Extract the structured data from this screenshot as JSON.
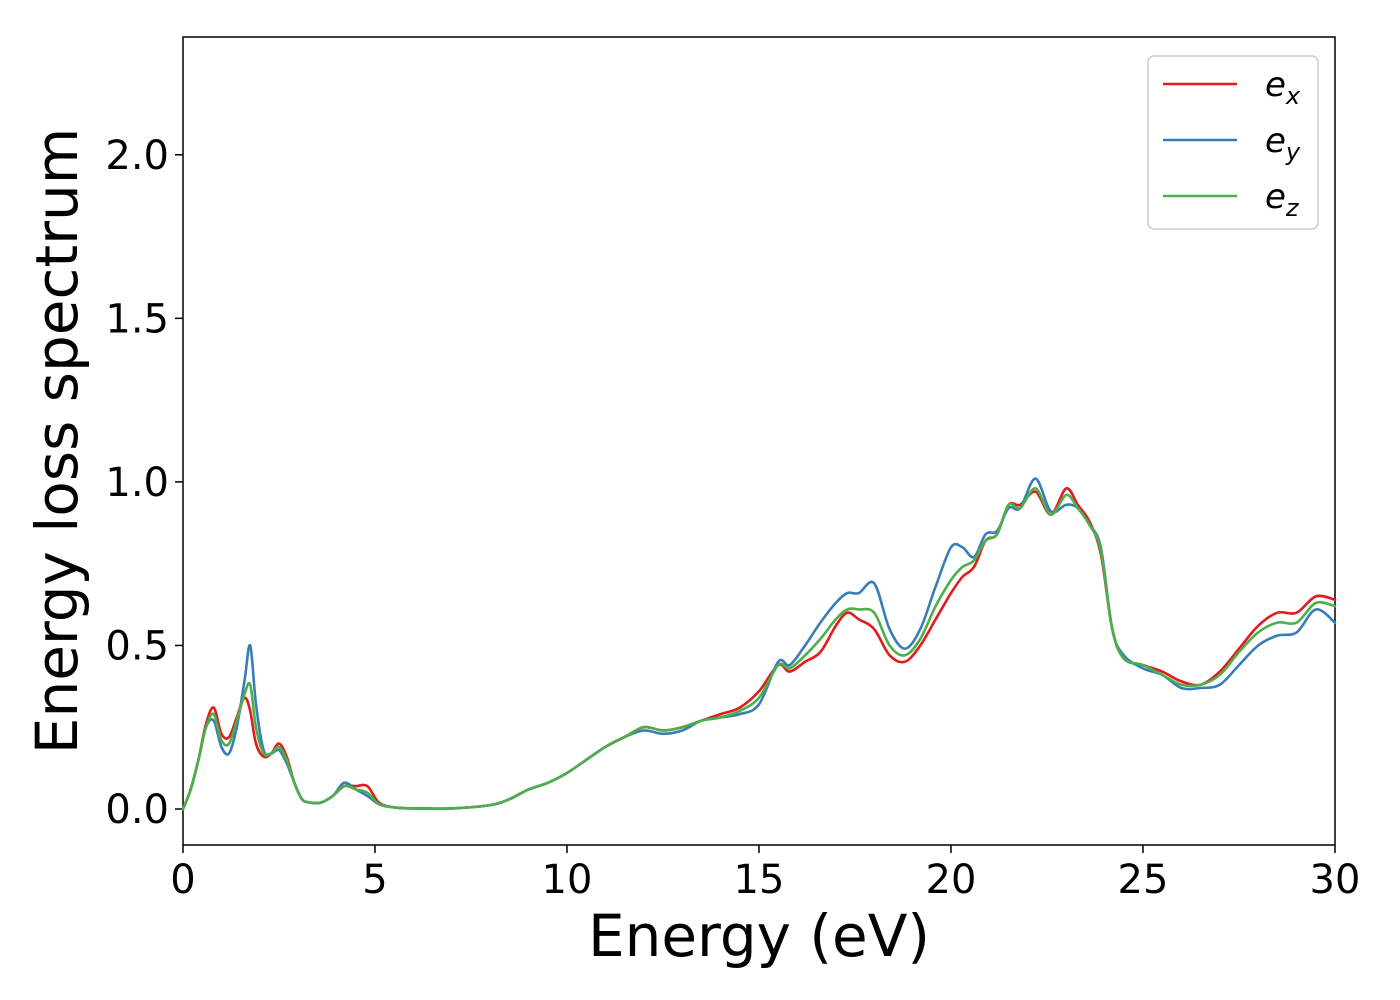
{
  "chart_data": {
    "type": "line",
    "xlabel": "Energy (eV)",
    "ylabel": "Energy loss spectrum",
    "xlim": [
      0,
      30
    ],
    "ylim": [
      -0.11,
      2.36
    ],
    "xticks": [
      0,
      5,
      10,
      15,
      20,
      25,
      30
    ],
    "xtick_labels": [
      "0",
      "5",
      "10",
      "15",
      "20",
      "25",
      "30"
    ],
    "yticks": [
      0.0,
      0.5,
      1.0,
      1.5,
      2.0
    ],
    "ytick_labels": [
      "0.0",
      "0.5",
      "1.0",
      "1.5",
      "2.0"
    ],
    "grid": false,
    "legend_position": "top-right",
    "x": [
      0,
      0.2,
      0.4,
      0.6,
      0.8,
      1.0,
      1.2,
      1.4,
      1.6,
      1.75,
      1.9,
      2.1,
      2.3,
      2.5,
      2.7,
      2.9,
      3.1,
      3.3,
      3.6,
      3.9,
      4.2,
      4.5,
      4.8,
      5.1,
      5.5,
      6,
      7,
      8,
      8.5,
      9,
      9.5,
      10,
      10.5,
      11,
      11.5,
      12,
      12.5,
      13,
      13.5,
      14,
      14.5,
      15,
      15.5,
      15.8,
      16.2,
      16.6,
      17,
      17.3,
      17.6,
      18,
      18.4,
      18.8,
      19.2,
      19.6,
      20,
      20.3,
      20.6,
      20.9,
      21.2,
      21.5,
      21.8,
      22.2,
      22.6,
      23,
      23.3,
      23.6,
      23.9,
      24.2,
      24.5,
      25,
      25.5,
      26,
      26.5,
      27,
      27.5,
      28,
      28.5,
      29,
      29.5,
      30
    ],
    "series": [
      {
        "name": "e_x",
        "label_base": "e",
        "label_sub": "x",
        "color": "#e41a1c",
        "values": [
          0.0,
          0.06,
          0.15,
          0.26,
          0.31,
          0.23,
          0.22,
          0.28,
          0.34,
          0.3,
          0.2,
          0.16,
          0.17,
          0.2,
          0.16,
          0.08,
          0.03,
          0.02,
          0.02,
          0.04,
          0.07,
          0.07,
          0.07,
          0.02,
          0.005,
          0.002,
          0.002,
          0.012,
          0.03,
          0.06,
          0.08,
          0.11,
          0.15,
          0.19,
          0.22,
          0.25,
          0.24,
          0.25,
          0.27,
          0.29,
          0.31,
          0.36,
          0.44,
          0.42,
          0.45,
          0.48,
          0.56,
          0.6,
          0.58,
          0.55,
          0.47,
          0.45,
          0.5,
          0.58,
          0.66,
          0.71,
          0.74,
          0.82,
          0.84,
          0.93,
          0.93,
          0.97,
          0.9,
          0.98,
          0.93,
          0.88,
          0.78,
          0.55,
          0.46,
          0.44,
          0.42,
          0.39,
          0.38,
          0.42,
          0.49,
          0.56,
          0.6,
          0.6,
          0.65,
          0.64
        ]
      },
      {
        "name": "e_y",
        "label_base": "e",
        "label_sub": "y",
        "color": "#377eb8",
        "values": [
          0.0,
          0.06,
          0.15,
          0.25,
          0.27,
          0.19,
          0.17,
          0.25,
          0.39,
          0.5,
          0.32,
          0.18,
          0.17,
          0.18,
          0.14,
          0.08,
          0.03,
          0.02,
          0.02,
          0.04,
          0.08,
          0.06,
          0.04,
          0.015,
          0.005,
          0.002,
          0.002,
          0.012,
          0.03,
          0.06,
          0.08,
          0.11,
          0.15,
          0.19,
          0.22,
          0.24,
          0.23,
          0.24,
          0.27,
          0.28,
          0.29,
          0.32,
          0.45,
          0.44,
          0.5,
          0.57,
          0.63,
          0.66,
          0.66,
          0.69,
          0.55,
          0.49,
          0.55,
          0.68,
          0.8,
          0.8,
          0.77,
          0.84,
          0.85,
          0.92,
          0.92,
          1.01,
          0.91,
          0.93,
          0.92,
          0.87,
          0.8,
          0.55,
          0.47,
          0.43,
          0.41,
          0.37,
          0.37,
          0.38,
          0.44,
          0.5,
          0.53,
          0.54,
          0.61,
          0.57
        ]
      },
      {
        "name": "e_z",
        "label_base": "e",
        "label_sub": "z",
        "color": "#4daf4a",
        "values": [
          0.0,
          0.06,
          0.15,
          0.25,
          0.29,
          0.21,
          0.2,
          0.27,
          0.35,
          0.38,
          0.25,
          0.17,
          0.17,
          0.19,
          0.15,
          0.08,
          0.03,
          0.02,
          0.02,
          0.04,
          0.07,
          0.06,
          0.05,
          0.015,
          0.005,
          0.002,
          0.002,
          0.012,
          0.03,
          0.06,
          0.08,
          0.11,
          0.15,
          0.19,
          0.22,
          0.25,
          0.24,
          0.25,
          0.27,
          0.28,
          0.3,
          0.34,
          0.44,
          0.43,
          0.47,
          0.52,
          0.58,
          0.61,
          0.61,
          0.6,
          0.5,
          0.47,
          0.52,
          0.62,
          0.7,
          0.74,
          0.76,
          0.82,
          0.84,
          0.93,
          0.92,
          0.98,
          0.9,
          0.96,
          0.92,
          0.87,
          0.79,
          0.55,
          0.46,
          0.44,
          0.41,
          0.38,
          0.38,
          0.41,
          0.48,
          0.54,
          0.57,
          0.57,
          0.63,
          0.62
        ]
      }
    ]
  }
}
